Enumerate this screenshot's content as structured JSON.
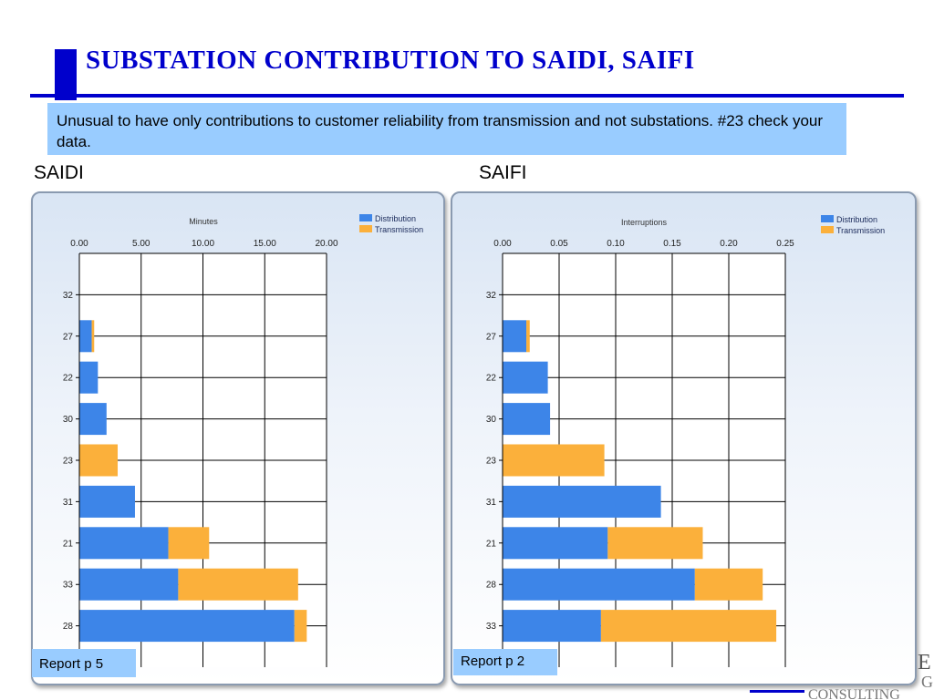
{
  "slide": {
    "title": "SUBSTATION CONTRIBUTION TO SAIDI, SAIFI",
    "note": "Unusual to have only contributions to customer reliability from transmission and not substations. #23 check your data.",
    "footer_fragments": {
      "letter_e": "E",
      "letter_g": "G",
      "text": "CONSULTING"
    },
    "accent_color": "#0000cc",
    "note_color": "#99ccff"
  },
  "chart_data": [
    {
      "type": "bar",
      "orientation": "horizontal",
      "stacked": true,
      "label": "SAIDI",
      "xlabel": "Minutes",
      "xlim": [
        0,
        20
      ],
      "xticks": [
        "0.00",
        "5.00",
        "10.00",
        "15.00",
        "20.00"
      ],
      "categories": [
        "32",
        "27",
        "22",
        "30",
        "23",
        "31",
        "21",
        "33",
        "28"
      ],
      "series": [
        {
          "name": "Distribution",
          "color": "#3d85e8",
          "values": [
            0,
            1.0,
            1.5,
            2.2,
            0,
            4.5,
            7.2,
            8.0,
            17.4
          ]
        },
        {
          "name": "Transmission",
          "color": "#fbb03b",
          "values": [
            0,
            0.2,
            0,
            0,
            3.1,
            0,
            3.3,
            9.7,
            1.0
          ]
        }
      ],
      "legend": "top-right",
      "grid": true,
      "source": "Report p 5"
    },
    {
      "type": "bar",
      "orientation": "horizontal",
      "stacked": true,
      "label": "SAIFI",
      "xlabel": "Interruptions",
      "xlim": [
        0,
        0.25
      ],
      "xticks": [
        "0.00",
        "0.05",
        "0.10",
        "0.15",
        "0.20",
        "0.25"
      ],
      "categories": [
        "32",
        "27",
        "22",
        "30",
        "23",
        "31",
        "21",
        "28",
        "33"
      ],
      "series": [
        {
          "name": "Distribution",
          "color": "#3d85e8",
          "values": [
            0,
            0.021,
            0.04,
            0.042,
            0,
            0.14,
            0.093,
            0.17,
            0.087
          ]
        },
        {
          "name": "Transmission",
          "color": "#fbb03b",
          "values": [
            0,
            0.003,
            0,
            0,
            0.09,
            0,
            0.084,
            0.06,
            0.155
          ]
        }
      ],
      "legend": "top-right",
      "grid": true,
      "source": "Report p 2"
    }
  ]
}
